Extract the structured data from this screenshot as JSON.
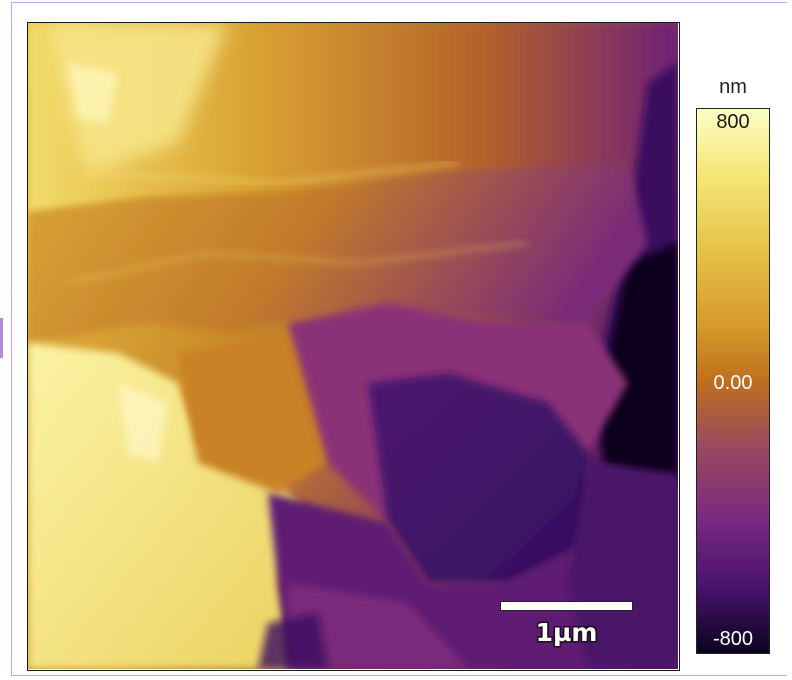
{
  "colorbar": {
    "unit": "nm",
    "max_label": "800",
    "mid_label": "0.00",
    "min_label": "-800",
    "colormap": "inferno"
  },
  "scale_bar": {
    "label": "1µm"
  },
  "colors": {
    "high": "#fdfec4",
    "mid": "#bf6f1e",
    "low": "#0a0420",
    "frame": "#c9a4e6"
  }
}
